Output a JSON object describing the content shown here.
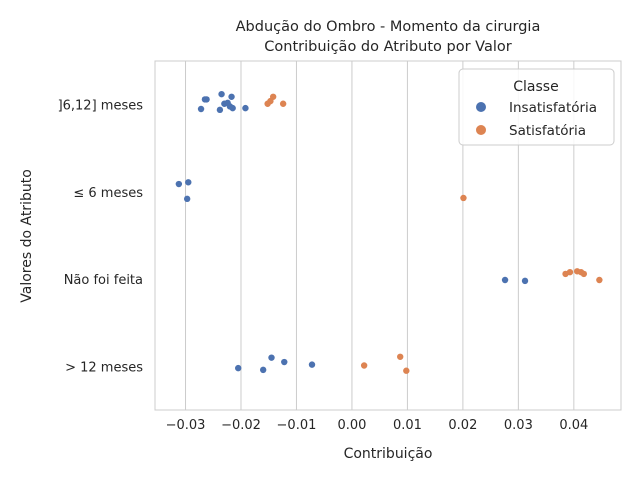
{
  "chart_data": {
    "type": "scatter",
    "title_lines": [
      "Abdução do Ombro - Momento da cirurgia",
      "Contribuição do Atributo por Valor"
    ],
    "xlabel": "Contribuição",
    "ylabel": "Valores do Atributo",
    "xlim": [
      -0.0355,
      0.0485
    ],
    "xticks": [
      -0.03,
      -0.02,
      -0.01,
      0.0,
      0.01,
      0.02,
      0.03,
      0.04
    ],
    "xtick_labels": [
      "−0.03",
      "−0.02",
      "−0.01",
      "0.00",
      "0.01",
      "0.02",
      "0.03",
      "0.04"
    ],
    "categories": [
      "]6,12] meses",
      "≤ 6 meses",
      "Não foi feita",
      "> 12 meses"
    ],
    "grid": true,
    "legend": {
      "title": "Classe",
      "position": "top-right",
      "entries": [
        "Insatisfatória",
        "Satisfatória"
      ]
    },
    "series": [
      {
        "name": "Insatisfatória",
        "color": "#4c72b0",
        "points": [
          {
            "category": "]6,12] meses",
            "x": -0.0235,
            "jitter": 0.12
          },
          {
            "category": "]6,12] meses",
            "x": -0.0265,
            "jitter": 0.06
          },
          {
            "category": "]6,12] meses",
            "x": -0.0262,
            "jitter": 0.06
          },
          {
            "category": "]6,12] meses",
            "x": -0.0217,
            "jitter": 0.09
          },
          {
            "category": "]6,12] meses",
            "x": -0.023,
            "jitter": 0.01
          },
          {
            "category": "]6,12] meses",
            "x": -0.0224,
            "jitter": 0.02
          },
          {
            "category": "]6,12] meses",
            "x": -0.022,
            "jitter": -0.02
          },
          {
            "category": "]6,12] meses",
            "x": -0.0215,
            "jitter": -0.04
          },
          {
            "category": "]6,12] meses",
            "x": -0.0192,
            "jitter": -0.04
          },
          {
            "category": "]6,12] meses",
            "x": -0.0238,
            "jitter": -0.06
          },
          {
            "category": "]6,12] meses",
            "x": -0.0272,
            "jitter": -0.05
          },
          {
            "category": "≤ 6 meses",
            "x": -0.0312,
            "jitter": 0.09
          },
          {
            "category": "≤ 6 meses",
            "x": -0.0295,
            "jitter": 0.11
          },
          {
            "category": "≤ 6 meses",
            "x": -0.0297,
            "jitter": -0.08
          },
          {
            "category": "Não foi feita",
            "x": 0.0276,
            "jitter": -0.01
          },
          {
            "category": "Não foi feita",
            "x": 0.0312,
            "jitter": -0.02
          },
          {
            "category": "> 12 meses",
            "x": -0.0145,
            "jitter": 0.1
          },
          {
            "category": "> 12 meses",
            "x": -0.0122,
            "jitter": 0.05
          },
          {
            "category": "> 12 meses",
            "x": -0.0072,
            "jitter": 0.02
          },
          {
            "category": "> 12 meses",
            "x": -0.0205,
            "jitter": -0.02
          },
          {
            "category": "> 12 meses",
            "x": -0.016,
            "jitter": -0.04
          }
        ]
      },
      {
        "name": "Satisfatória",
        "color": "#dd8452",
        "points": [
          {
            "category": "]6,12] meses",
            "x": -0.0142,
            "jitter": 0.09
          },
          {
            "category": "]6,12] meses",
            "x": -0.0147,
            "jitter": 0.04
          },
          {
            "category": "]6,12] meses",
            "x": -0.0152,
            "jitter": 0.01
          },
          {
            "category": "]6,12] meses",
            "x": -0.0124,
            "jitter": 0.01
          },
          {
            "category": "≤ 6 meses",
            "x": 0.0201,
            "jitter": -0.07
          },
          {
            "category": "Não foi feita",
            "x": 0.0393,
            "jitter": 0.08
          },
          {
            "category": "Não foi feita",
            "x": 0.0385,
            "jitter": 0.06
          },
          {
            "category": "Não foi feita",
            "x": 0.0406,
            "jitter": 0.09
          },
          {
            "category": "Não foi feita",
            "x": 0.0413,
            "jitter": 0.08
          },
          {
            "category": "Não foi feita",
            "x": 0.0418,
            "jitter": 0.06
          },
          {
            "category": "Não foi feita",
            "x": 0.0446,
            "jitter": -0.01
          },
          {
            "category": "> 12 meses",
            "x": 0.0087,
            "jitter": 0.11
          },
          {
            "category": "> 12 meses",
            "x": 0.0022,
            "jitter": 0.01
          },
          {
            "category": "> 12 meses",
            "x": 0.0098,
            "jitter": -0.05
          }
        ]
      }
    ]
  }
}
